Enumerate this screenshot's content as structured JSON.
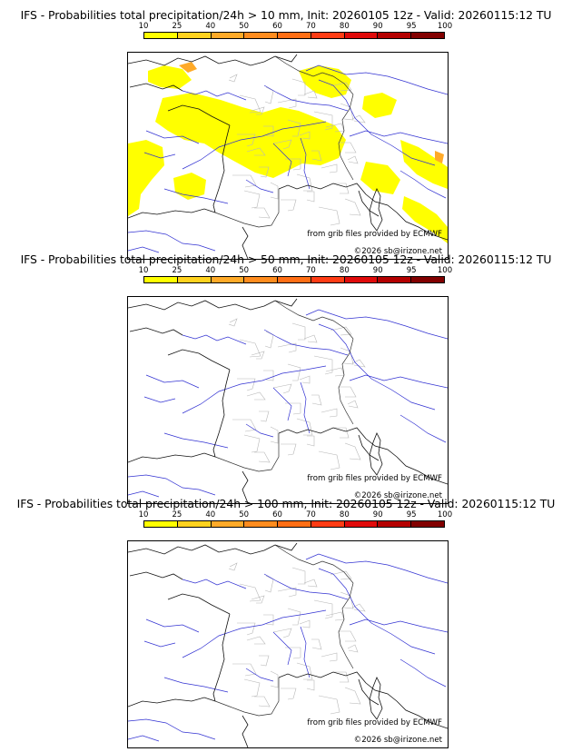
{
  "colorbar": {
    "ticks": [
      "10",
      "25",
      "40",
      "50",
      "60",
      "70",
      "80",
      "90",
      "95",
      "100"
    ],
    "colors": [
      "#ffff00",
      "#ffd21e",
      "#ffaa28",
      "#ff8c1e",
      "#ff6e14",
      "#ff3c14",
      "#e00a0a",
      "#b40000",
      "#820000"
    ]
  },
  "credits": {
    "source": "from grib files provided by ECMWF",
    "copyright": "©2026 sb@irizone.net"
  },
  "panels": [
    {
      "title": "IFS - Probabilities total precipitation/24h > 10 mm, Init: 20260105 12z - Valid: 20260115:12 TU"
    },
    {
      "title": "IFS - Probabilities total precipitation/24h > 50 mm, Init: 20260105 12z - Valid: 20260115:12 TU"
    },
    {
      "title": "IFS - Probabilities total precipitation/24h > 100 mm, Init: 20260105 12z - Valid: 20260115:12 TU"
    }
  ]
}
